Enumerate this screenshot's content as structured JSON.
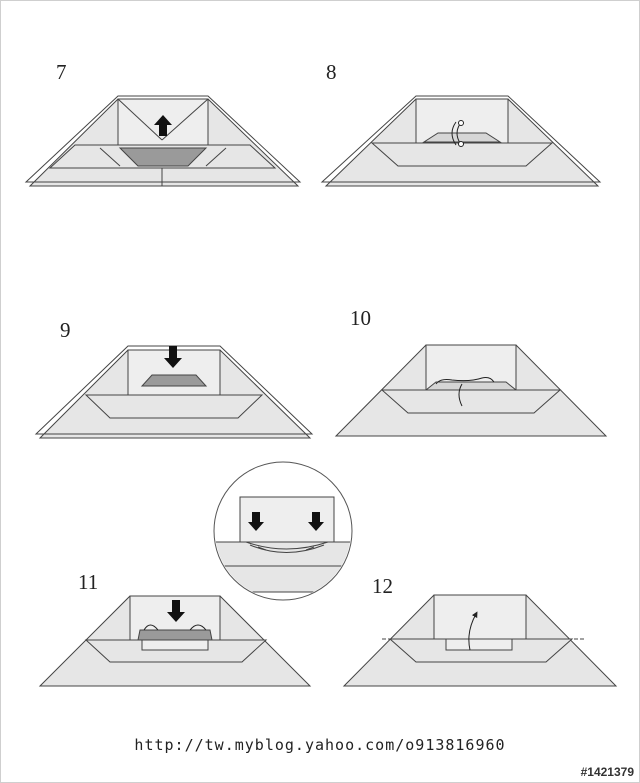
{
  "steps": [
    {
      "label": "7"
    },
    {
      "label": "8"
    },
    {
      "label": "9"
    },
    {
      "label": "10"
    },
    {
      "label": "11"
    },
    {
      "label": "12"
    }
  ],
  "footer_url": "http://tw.myblog.yahoo.com/o913816960",
  "watermark": "#1421379",
  "colors": {
    "paper": "#e6e6e6",
    "paper_shade": "#dadada",
    "pocket": "#9a9a9a",
    "stroke": "#444444",
    "arrow": "#111111"
  },
  "icons": [
    "up-arrow-icon",
    "down-arrow-icon",
    "fold-curve-icon",
    "magnifier-circle"
  ]
}
